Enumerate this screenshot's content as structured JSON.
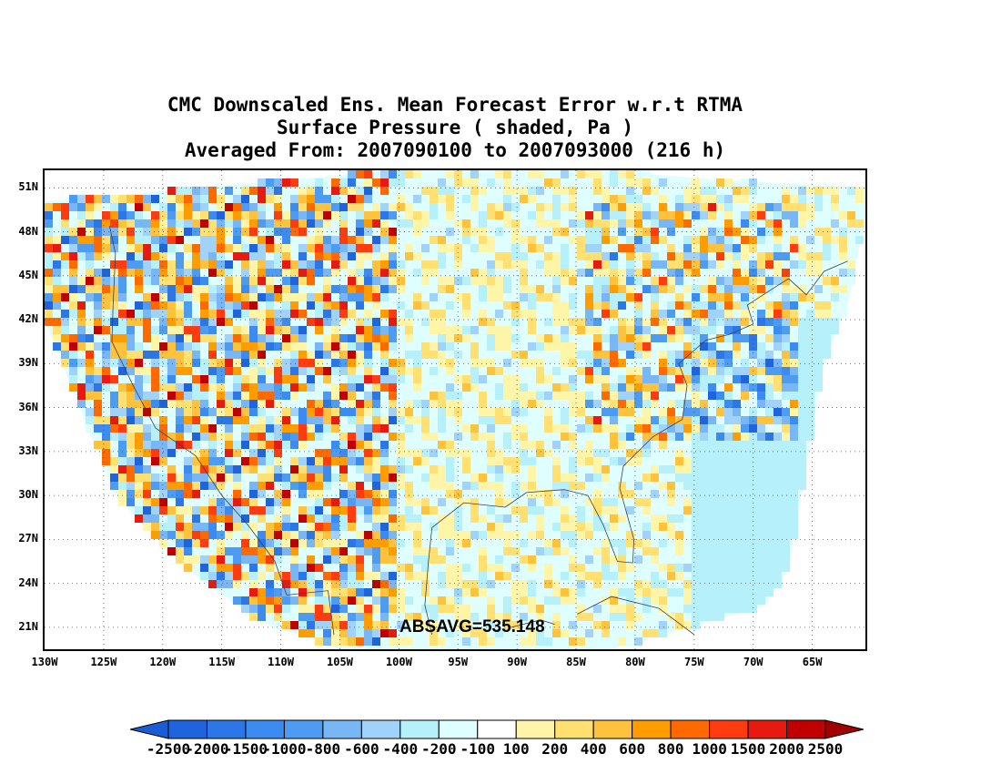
{
  "title": {
    "line1": "CMC Downscaled Ens. Mean Forecast Error w.r.t RTMA",
    "line2": "Surface Pressure ( shaded, Pa )",
    "line3": "Averaged From: 2007090100 to 2007093000 (216 h)"
  },
  "map": {
    "projection": "lat-lon",
    "lon_range": [
      -130,
      -60.5
    ],
    "lat_range": [
      19.5,
      52.2
    ],
    "grid": true,
    "lat_labels": [
      "51N",
      "48N",
      "45N",
      "42N",
      "39N",
      "36N",
      "33N",
      "30N",
      "27N",
      "24N",
      "21N"
    ],
    "lon_labels": [
      "130W",
      "125W",
      "120W",
      "115W",
      "110W",
      "105W",
      "100W",
      "95W",
      "90W",
      "85W",
      "80W",
      "75W",
      "70W",
      "65W"
    ]
  },
  "annotation": {
    "absavg": "ABSAVG=535.148"
  },
  "colorbar": {
    "labels": [
      "-2500",
      "-2000",
      "-1500",
      "-1000",
      "-800",
      "-600",
      "-400",
      "-200",
      "-100",
      "100",
      "200",
      "400",
      "600",
      "800",
      "1000",
      "1500",
      "2000",
      "2500"
    ],
    "colors": [
      "#1f63dd",
      "#2c76e6",
      "#3b8bf0",
      "#4d9cf2",
      "#79b6f5",
      "#a0d2fa",
      "#b6f0fa",
      "#dffeff",
      "#ffffff",
      "#fff5a8",
      "#ffe070",
      "#ffc23c",
      "#ff9c00",
      "#ff6a00",
      "#ff3c10",
      "#e61a10",
      "#c00000"
    ],
    "under_color": "#1a5bd6",
    "over_color": "#a00000"
  }
}
